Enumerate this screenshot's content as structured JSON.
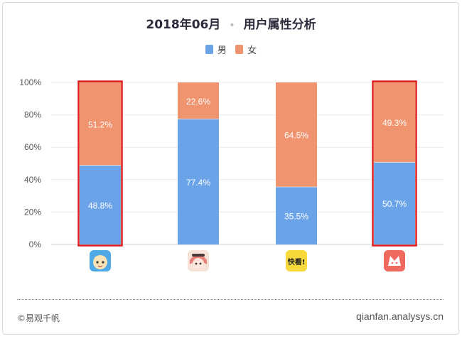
{
  "header": {
    "date": "2018年06月",
    "separator": "•",
    "subtitle": "用户属性分析"
  },
  "legend": [
    {
      "label": "男",
      "color": "#6aa3e8"
    },
    {
      "label": "女",
      "color": "#f0936f"
    }
  ],
  "chart_data": {
    "type": "bar",
    "stacked": true,
    "title": "2018年06月 • 用户属性分析",
    "categories": [
      "app-1",
      "app-2",
      "app-3",
      "app-4"
    ],
    "series": [
      {
        "name": "男",
        "values": [
          48.8,
          77.4,
          35.5,
          50.7
        ],
        "labels": [
          "48.8%",
          "77.4%",
          "35.5%",
          "50.7%"
        ]
      },
      {
        "name": "女",
        "values": [
          51.2,
          22.6,
          64.5,
          49.3
        ],
        "labels": [
          "51.2%",
          "22.6%",
          "64.5%",
          "49.3%"
        ]
      }
    ],
    "yticks": [
      "0%",
      "20%",
      "40%",
      "60%",
      "80%",
      "100%"
    ],
    "ylim": [
      0,
      100
    ],
    "grid": true,
    "highlighted": [
      "app-1",
      "app-4"
    ],
    "legend_position": "top"
  },
  "footer": {
    "copyright": "©易观千帆",
    "site": "qianfan.analysys.cn"
  }
}
